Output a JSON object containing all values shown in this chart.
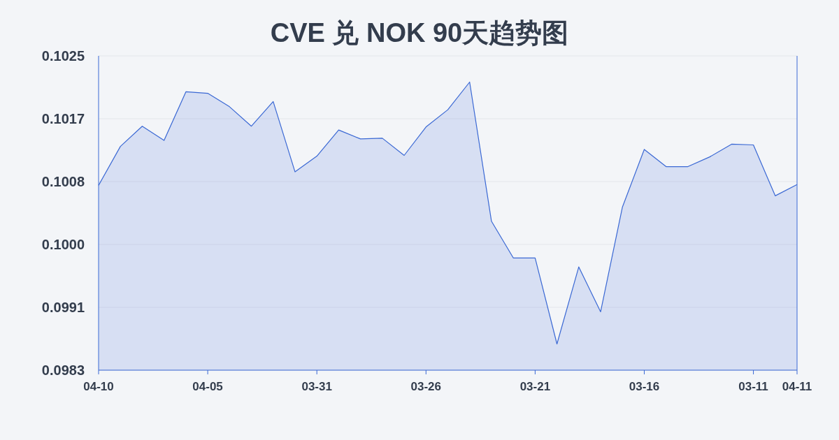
{
  "chart_data": {
    "type": "area",
    "title": "CVE 兑 NOK 90天趋势图",
    "categories": [
      "04-10",
      null,
      null,
      null,
      null,
      "04-05",
      null,
      null,
      null,
      null,
      "03-31",
      null,
      null,
      null,
      null,
      "03-26",
      null,
      null,
      null,
      null,
      "03-21",
      null,
      null,
      null,
      null,
      "03-16",
      null,
      null,
      null,
      null,
      "03-11",
      null,
      "04-11"
    ],
    "series": [
      {
        "color": "#3a68d4",
        "values": [
          0.10077,
          0.10129,
          0.10156,
          0.10137,
          0.10202,
          0.102,
          0.10182,
          0.10156,
          0.10189,
          0.10095,
          0.10116,
          0.10151,
          0.10139,
          0.1014,
          0.10117,
          0.10155,
          0.10178,
          0.10215,
          0.10029,
          0.0998,
          0.0998,
          0.09865,
          0.09968,
          0.09908,
          0.10048,
          0.10125,
          0.10102,
          0.10102,
          0.10115,
          0.10132,
          0.10131,
          0.10063,
          0.10078
        ]
      }
    ],
    "ylim": [
      0.0983,
      0.1025
    ],
    "yticks": [
      {
        "value": 0.0983,
        "label": "0.0983"
      },
      {
        "value": 0.09914,
        "label": "0.0991"
      },
      {
        "value": 0.09998,
        "label": "0.1000"
      },
      {
        "value": 0.10082,
        "label": "0.1008"
      },
      {
        "value": 0.10166,
        "label": "0.1017"
      },
      {
        "value": 0.1025,
        "label": "0.1025"
      }
    ],
    "grid": "y"
  }
}
